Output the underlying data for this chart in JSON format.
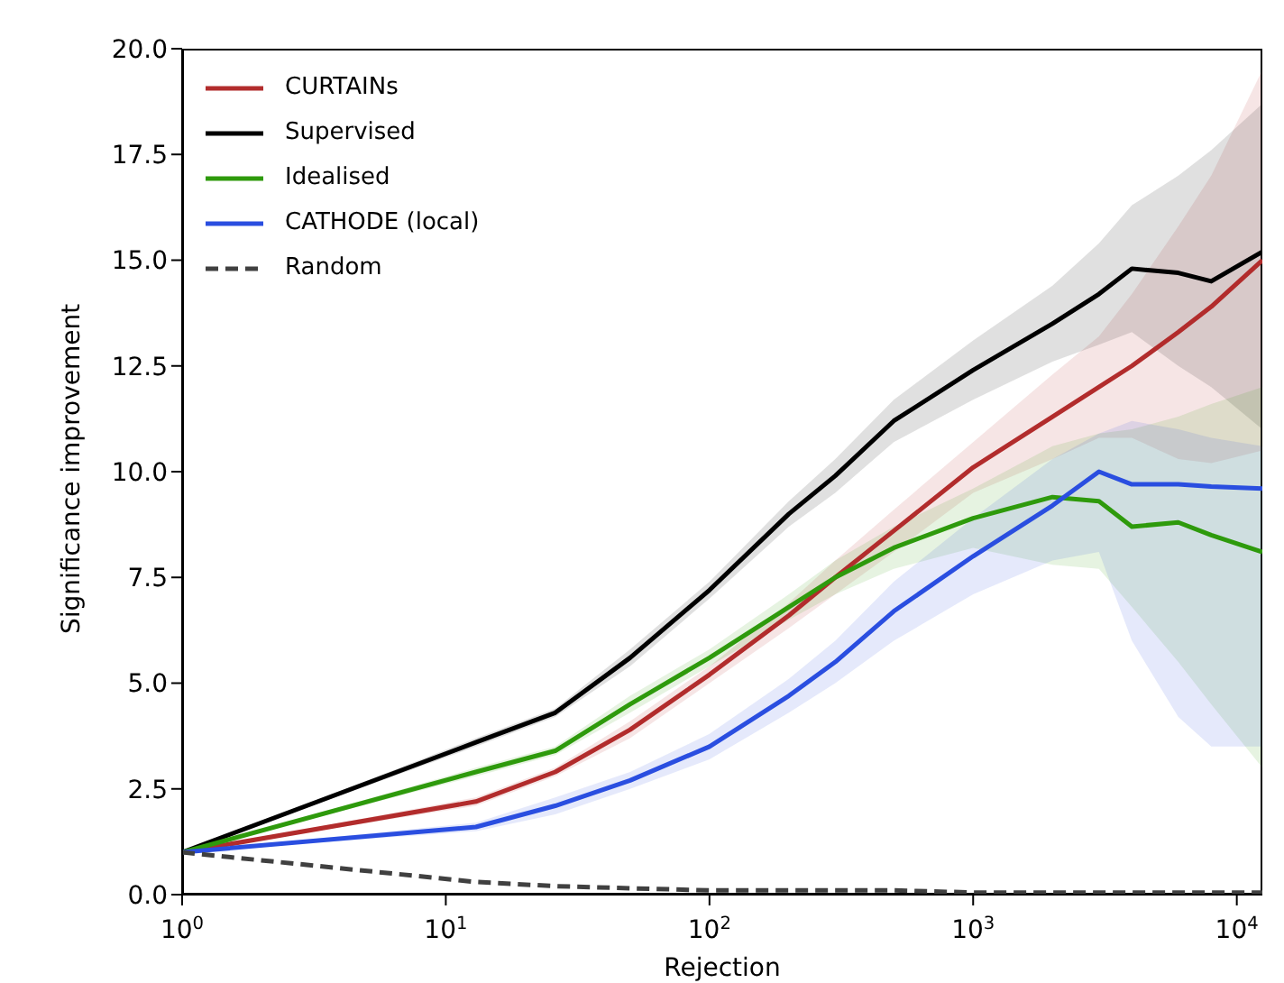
{
  "chart_data": {
    "type": "line",
    "xlabel": "Rejection",
    "ylabel": "Significance improvement",
    "log": "x",
    "xlim": [
      1,
      12500
    ],
    "xticks": [
      {
        "value": 1,
        "label": "10$^{0}$"
      },
      {
        "value": 10,
        "label": "10$^{1}$"
      },
      {
        "value": 100,
        "label": "10$^{2}$"
      },
      {
        "value": 1000,
        "label": "10$^{3}$"
      },
      {
        "value": 10000,
        "label": "10$^{4}$"
      }
    ],
    "ylim": [
      0,
      20
    ],
    "yticks": [
      {
        "value": 0,
        "label": "0.0"
      },
      {
        "value": 2.5,
        "label": "2.5"
      },
      {
        "value": 5,
        "label": "5.0"
      },
      {
        "value": 7.5,
        "label": "7.5"
      },
      {
        "value": 10,
        "label": "10.0"
      },
      {
        "value": 12.5,
        "label": "12.5"
      },
      {
        "value": 15,
        "label": "15.0"
      },
      {
        "value": 17.5,
        "label": "17.5"
      },
      {
        "value": 20,
        "label": "20.0"
      }
    ],
    "grid": false,
    "legend": "top left",
    "marker": "none",
    "x": [
      1,
      13,
      26,
      50,
      100,
      200,
      300,
      500,
      1000,
      2000,
      3000,
      4000,
      6000,
      8000,
      12500
    ],
    "series": [
      {
        "name": "CURTAINs",
        "color": "#b22c2c",
        "values": [
          1,
          2.2,
          2.9,
          3.9,
          5.2,
          6.6,
          7.5,
          8.6,
          10.1,
          11.3,
          12,
          12.5,
          13.3,
          13.9,
          15
        ],
        "lower": [
          1,
          2.1,
          2.8,
          3.7,
          5,
          6.3,
          7.1,
          8.1,
          9.5,
          10.3,
          10.8,
          10.8,
          10.3,
          10.2,
          10.5
        ],
        "upper": [
          1,
          2.3,
          3,
          4.1,
          5.4,
          6.9,
          7.9,
          9.1,
          10.7,
          12.3,
          13.2,
          14.2,
          15.8,
          17,
          19.5
        ]
      },
      {
        "name": "Supervised",
        "color": "#000000",
        "values": [
          1,
          3.6,
          4.3,
          5.6,
          7.2,
          9,
          9.9,
          11.2,
          12.4,
          13.5,
          14.2,
          14.8,
          14.7,
          14.5,
          15.2
        ],
        "lower": [
          1,
          3.5,
          4.2,
          5.4,
          7,
          8.7,
          9.5,
          10.7,
          11.7,
          12.6,
          13,
          13.3,
          12.5,
          12,
          11
        ],
        "upper": [
          1,
          3.7,
          4.4,
          5.8,
          7.4,
          9.3,
          10.3,
          11.7,
          13.1,
          14.4,
          15.4,
          16.3,
          17,
          17.6,
          18.7
        ]
      },
      {
        "name": "Idealised",
        "color": "#2e9a0c",
        "values": [
          1,
          2.9,
          3.4,
          4.5,
          5.6,
          6.8,
          7.5,
          8.2,
          8.9,
          9.4,
          9.3,
          8.7,
          8.8,
          8.5,
          8.1
        ],
        "lower": [
          1,
          2.8,
          3.3,
          4.3,
          5.4,
          6.5,
          7.1,
          7.7,
          8.2,
          7.8,
          7.7,
          6.8,
          5.5,
          4.5,
          3
        ],
        "upper": [
          1,
          3,
          3.5,
          4.7,
          5.8,
          7.1,
          7.9,
          8.7,
          9.6,
          10.6,
          10.9,
          11,
          11.3,
          11.6,
          12
        ]
      },
      {
        "name": "CATHODE (local)",
        "color": "#2a4ee0",
        "values": [
          1,
          1.6,
          2.1,
          2.7,
          3.5,
          4.7,
          5.5,
          6.7,
          8,
          9.2,
          10,
          9.7,
          9.7,
          9.65,
          9.6
        ],
        "lower": [
          1,
          1.5,
          1.9,
          2.5,
          3.2,
          4.3,
          5,
          6,
          7.1,
          7.9,
          8.1,
          6,
          4.2,
          3.5,
          3.5
        ],
        "upper": [
          1,
          1.7,
          2.3,
          2.9,
          3.8,
          5.1,
          6,
          7.4,
          8.9,
          10.3,
          10.9,
          11.2,
          11,
          10.8,
          10.6
        ]
      },
      {
        "name": "Random",
        "color": "#404040",
        "line_style": "dashed",
        "values": [
          1,
          0.3,
          0.2,
          0.15,
          0.1,
          0.1,
          0.1,
          0.1,
          0.05,
          0.05,
          0.05,
          0.05,
          0.05,
          0.05,
          0.05
        ]
      }
    ]
  }
}
